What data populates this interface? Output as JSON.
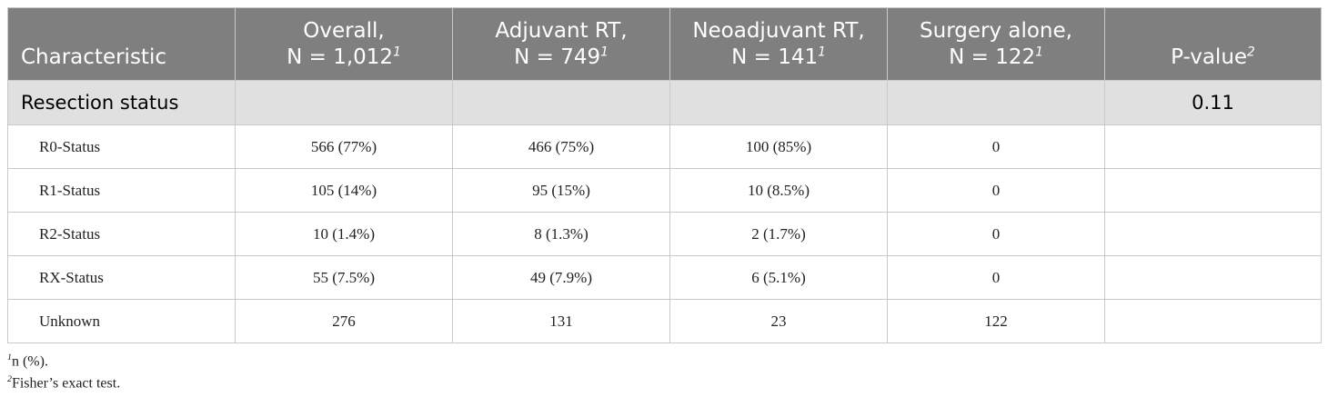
{
  "table": {
    "header": [
      {
        "line2": "Characteristic"
      },
      {
        "line1": "Overall,",
        "line2": "N = 1,012",
        "sup": "1"
      },
      {
        "line1": "Adjuvant RT,",
        "line2": "N = 749",
        "sup": "1"
      },
      {
        "line1": "Neoadjuvant RT,",
        "line2": "N = 141",
        "sup": "1"
      },
      {
        "line1": "Surgery alone,",
        "line2": "N = 122",
        "sup": "1"
      },
      {
        "line2": "P-value",
        "sup": "2"
      }
    ],
    "section": {
      "label": "Resection status",
      "p_value": "0.11"
    },
    "rows": [
      [
        "R0-Status",
        "566 (77%)",
        "466 (75%)",
        "100 (85%)",
        "0"
      ],
      [
        "R1-Status",
        "105 (14%)",
        "95 (15%)",
        "10 (8.5%)",
        "0"
      ],
      [
        "R2-Status",
        "10 (1.4%)",
        "8 (1.3%)",
        "2 (1.7%)",
        "0"
      ],
      [
        "RX-Status",
        "55 (7.5%)",
        "49 (7.9%)",
        "6 (5.1%)",
        "0"
      ],
      [
        "Unknown",
        "276",
        "131",
        "23",
        "122"
      ]
    ]
  },
  "footnotes": [
    {
      "sup": "1",
      "text": "n (%)."
    },
    {
      "sup": "2",
      "text": "Fisher’s exact test."
    }
  ]
}
